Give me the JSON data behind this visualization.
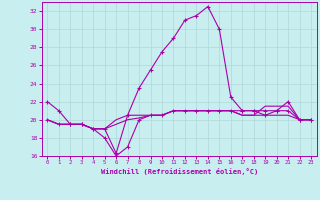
{
  "xlabel": "Windchill (Refroidissement éolien,°C)",
  "background_color": "#c8eef0",
  "grid_color": "#b0d8d8",
  "line_color": "#aa00aa",
  "x_values": [
    0,
    1,
    2,
    3,
    4,
    5,
    6,
    7,
    8,
    9,
    10,
    11,
    12,
    13,
    14,
    15,
    16,
    17,
    18,
    19,
    20,
    21,
    22,
    23
  ],
  "line1": [
    22.0,
    21.0,
    19.5,
    19.5,
    19.0,
    19.0,
    16.3,
    20.5,
    23.5,
    25.5,
    27.5,
    29.0,
    31.0,
    31.5,
    32.5,
    30.0,
    22.5,
    21.0,
    21.0,
    20.5,
    21.0,
    22.0,
    20.0,
    20.0
  ],
  "line2": [
    20.0,
    19.5,
    19.5,
    19.5,
    19.0,
    18.0,
    16.0,
    17.0,
    20.0,
    20.5,
    20.5,
    21.0,
    21.0,
    21.0,
    21.0,
    21.0,
    21.0,
    21.0,
    21.0,
    21.0,
    21.0,
    21.0,
    20.0,
    20.0
  ],
  "line3": [
    20.0,
    19.5,
    19.5,
    19.5,
    19.0,
    19.0,
    19.5,
    20.0,
    20.2,
    20.5,
    20.5,
    21.0,
    21.0,
    21.0,
    21.0,
    21.0,
    21.0,
    20.5,
    20.5,
    20.5,
    20.5,
    20.5,
    20.0,
    20.0
  ],
  "line4": [
    20.0,
    19.5,
    19.5,
    19.5,
    19.0,
    19.0,
    20.0,
    20.5,
    20.5,
    20.5,
    20.5,
    21.0,
    21.0,
    21.0,
    21.0,
    21.0,
    21.0,
    20.5,
    20.5,
    21.5,
    21.5,
    21.5,
    20.0,
    20.0
  ],
  "ylim": [
    16,
    33
  ],
  "xlim": [
    -0.5,
    23.5
  ],
  "yticks": [
    16,
    18,
    20,
    22,
    24,
    26,
    28,
    30,
    32
  ],
  "xticks": [
    0,
    1,
    2,
    3,
    4,
    5,
    6,
    7,
    8,
    9,
    10,
    11,
    12,
    13,
    14,
    15,
    16,
    17,
    18,
    19,
    20,
    21,
    22,
    23
  ]
}
